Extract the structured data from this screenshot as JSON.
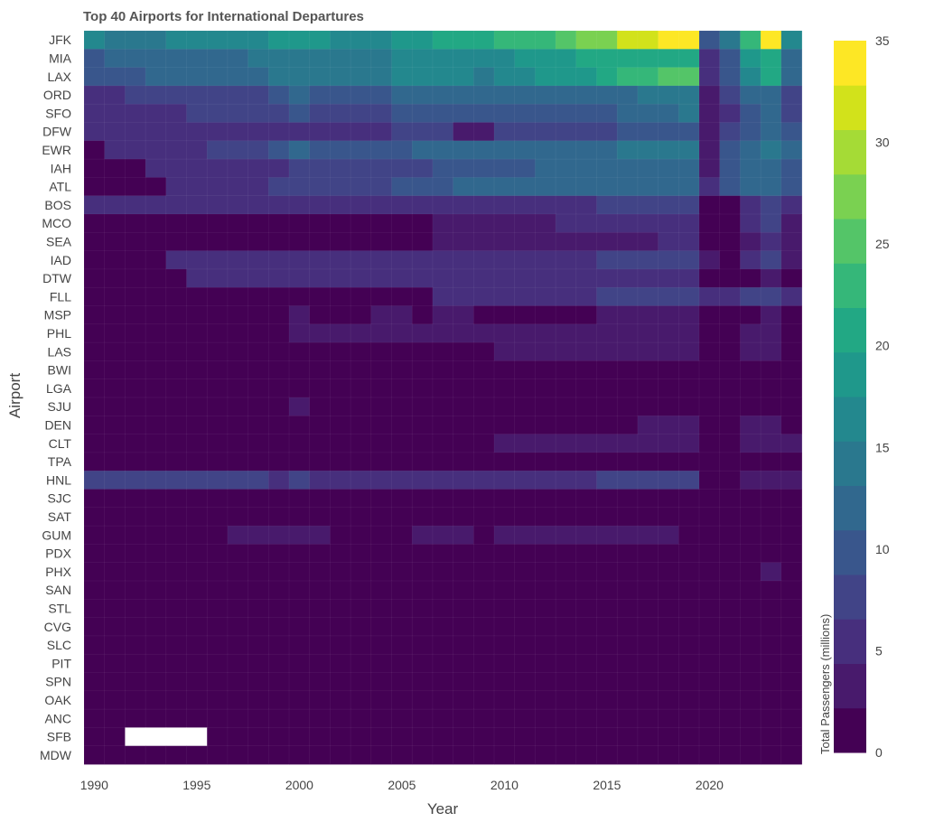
{
  "chart_data": {
    "type": "heatmap",
    "title": "Top 40 Airports for International Departures",
    "xlabel": "Year",
    "ylabel": "Airport",
    "colorbar_title": "Total Passengers (millions)",
    "colorscale": "viridis",
    "zlim": [
      0,
      35
    ],
    "colorbar_ticks": [
      0,
      5,
      10,
      15,
      20,
      25,
      30,
      35
    ],
    "x_ticks": [
      1990,
      1995,
      2000,
      2005,
      2010,
      2015,
      2020
    ],
    "x": [
      1990,
      1991,
      1992,
      1993,
      1994,
      1995,
      1996,
      1997,
      1998,
      1999,
      2000,
      2001,
      2002,
      2003,
      2004,
      2005,
      2006,
      2007,
      2008,
      2009,
      2010,
      2011,
      2012,
      2013,
      2014,
      2015,
      2016,
      2017,
      2018,
      2019,
      2020,
      2021,
      2022,
      2023,
      2024
    ],
    "y": [
      "JFK",
      "MIA",
      "LAX",
      "ORD",
      "SFO",
      "DFW",
      "EWR",
      "IAH",
      "ATL",
      "BOS",
      "MCO",
      "SEA",
      "IAD",
      "DTW",
      "FLL",
      "MSP",
      "PHL",
      "LAS",
      "BWI",
      "LGA",
      "SJU",
      "DEN",
      "CLT",
      "TPA",
      "HNL",
      "SJC",
      "SAT",
      "GUM",
      "PDX",
      "PHX",
      "SAN",
      "STL",
      "CVG",
      "SLC",
      "PIT",
      "SPN",
      "OAK",
      "ANC",
      "SFB",
      "MDW"
    ],
    "z": [
      [
        16,
        15,
        15,
        15,
        16,
        16,
        16,
        16,
        17,
        18,
        19,
        19,
        17,
        16,
        17,
        18,
        19,
        20,
        21,
        21,
        23,
        23,
        23,
        26,
        28,
        28,
        31,
        31,
        34,
        34,
        9,
        14,
        24,
        34,
        16
      ],
      [
        10,
        11,
        11,
        11,
        12,
        12,
        13,
        13,
        14,
        14,
        15,
        15,
        14,
        14,
        15,
        16,
        16,
        16,
        16,
        16,
        17,
        18,
        19,
        19,
        20,
        20,
        21,
        21,
        21,
        21,
        6,
        10,
        19,
        21,
        13
      ],
      [
        10,
        10,
        10,
        11,
        11,
        12,
        12,
        13,
        13,
        14,
        15,
        15,
        14,
        14,
        14,
        16,
        16,
        16,
        16,
        15,
        16,
        17,
        18,
        19,
        19,
        20,
        23,
        23,
        25,
        25,
        6,
        10,
        17,
        20,
        12
      ],
      [
        6,
        6,
        7,
        7,
        7,
        7,
        7,
        8,
        8,
        9,
        11,
        9,
        9,
        9,
        10,
        11,
        11,
        11,
        11,
        11,
        11,
        11,
        11,
        11,
        12,
        12,
        13,
        14,
        14,
        14,
        4,
        8,
        11,
        13,
        8
      ],
      [
        6,
        6,
        6,
        6,
        6,
        7,
        7,
        7,
        7,
        7,
        9,
        8,
        8,
        8,
        8,
        9,
        9,
        9,
        9,
        9,
        9,
        9,
        9,
        10,
        10,
        10,
        12,
        13,
        13,
        15,
        3,
        5,
        10,
        11,
        8
      ],
      [
        5,
        5,
        5,
        5,
        5,
        5,
        5,
        5,
        5,
        5,
        6,
        6,
        6,
        6,
        6,
        7,
        7,
        7,
        4,
        4,
        7,
        7,
        8,
        8,
        8,
        8,
        9,
        10,
        10,
        10,
        4,
        7,
        9,
        11,
        9
      ],
      [
        1,
        6,
        6,
        6,
        6,
        6,
        7,
        7,
        8,
        9,
        11,
        10,
        9,
        10,
        10,
        10,
        11,
        12,
        12,
        12,
        12,
        12,
        12,
        12,
        13,
        13,
        14,
        15,
        15,
        15,
        4,
        9,
        13,
        15,
        11
      ],
      [
        2,
        2,
        2,
        6,
        6,
        6,
        6,
        6,
        6,
        6,
        8,
        8,
        8,
        8,
        8,
        8,
        8,
        9,
        10,
        10,
        10,
        10,
        11,
        11,
        11,
        12,
        12,
        13,
        13,
        13,
        4,
        9,
        12,
        13,
        9
      ],
      [
        2,
        2,
        2,
        2,
        6,
        6,
        6,
        6,
        6,
        7,
        8,
        8,
        8,
        8,
        8,
        10,
        10,
        10,
        11,
        11,
        11,
        12,
        12,
        12,
        13,
        13,
        13,
        13,
        13,
        13,
        5,
        9,
        11,
        13,
        9
      ],
      [
        5,
        5,
        5,
        5,
        5,
        5,
        5,
        5,
        5,
        5,
        5,
        5,
        5,
        5,
        5,
        5,
        5,
        5,
        5,
        5,
        5,
        5,
        5,
        5,
        5,
        7,
        7,
        7,
        7,
        8,
        1,
        1,
        6,
        7,
        5
      ],
      [
        2,
        2,
        2,
        2,
        2,
        2,
        2,
        2,
        2,
        2,
        2,
        2,
        2,
        2,
        2,
        2,
        2,
        3,
        4,
        4,
        4,
        4,
        4,
        5,
        5,
        6,
        6,
        6,
        6,
        6,
        2,
        2,
        6,
        7,
        4
      ],
      [
        2,
        2,
        2,
        2,
        2,
        2,
        2,
        2,
        2,
        2,
        2,
        2,
        2,
        2,
        2,
        2,
        2,
        3,
        3,
        3,
        3,
        3,
        3,
        3,
        3,
        4,
        4,
        4,
        5,
        5,
        2,
        2,
        4,
        6,
        4
      ],
      [
        2,
        2,
        2,
        2,
        5,
        5,
        5,
        5,
        5,
        5,
        5,
        5,
        5,
        5,
        5,
        5,
        6,
        6,
        6,
        6,
        6,
        6,
        6,
        6,
        6,
        7,
        7,
        8,
        8,
        8,
        3,
        2,
        5,
        7,
        4
      ],
      [
        2,
        2,
        2,
        2,
        2,
        5,
        5,
        5,
        5,
        5,
        5,
        5,
        5,
        5,
        5,
        5,
        5,
        5,
        5,
        5,
        5,
        5,
        5,
        5,
        5,
        5,
        5,
        5,
        5,
        5,
        2,
        2,
        2,
        4,
        1
      ],
      [
        2,
        2,
        2,
        2,
        2,
        2,
        2,
        2,
        2,
        2,
        2,
        2,
        2,
        2,
        2,
        2,
        2,
        5,
        5,
        5,
        5,
        5,
        5,
        5,
        5,
        7,
        7,
        7,
        8,
        8,
        5,
        5,
        7,
        7,
        5
      ],
      [
        2,
        2,
        2,
        2,
        2,
        2,
        2,
        2,
        2,
        2,
        4,
        2,
        2,
        2,
        4,
        4,
        2,
        4,
        4,
        2,
        2,
        2,
        2,
        2,
        2,
        4,
        4,
        4,
        4,
        4,
        2,
        2,
        2,
        4,
        2
      ],
      [
        2,
        2,
        2,
        2,
        2,
        2,
        2,
        2,
        2,
        2,
        4,
        4,
        4,
        4,
        4,
        4,
        4,
        4,
        4,
        4,
        4,
        4,
        4,
        4,
        4,
        4,
        4,
        4,
        4,
        4,
        2,
        2,
        4,
        4,
        2
      ],
      [
        2,
        2,
        2,
        2,
        2,
        2,
        2,
        2,
        2,
        2,
        2,
        2,
        2,
        2,
        2,
        2,
        2,
        2,
        2,
        2,
        4,
        4,
        4,
        4,
        4,
        4,
        4,
        4,
        4,
        4,
        2,
        2,
        4,
        4,
        2
      ],
      [
        2,
        2,
        2,
        2,
        2,
        2,
        2,
        2,
        2,
        2,
        2,
        2,
        2,
        2,
        2,
        2,
        2,
        2,
        2,
        2,
        2,
        2,
        2,
        2,
        2,
        2,
        2,
        2,
        2,
        2,
        2,
        2,
        2,
        2,
        2
      ],
      [
        2,
        2,
        2,
        2,
        2,
        2,
        2,
        2,
        2,
        2,
        2,
        2,
        2,
        2,
        2,
        2,
        2,
        2,
        2,
        2,
        2,
        2,
        2,
        2,
        2,
        2,
        2,
        2,
        2,
        2,
        2,
        2,
        2,
        2,
        2
      ],
      [
        2,
        2,
        2,
        2,
        2,
        2,
        2,
        2,
        2,
        2,
        4,
        2,
        2,
        2,
        2,
        2,
        2,
        2,
        2,
        2,
        2,
        2,
        2,
        2,
        2,
        2,
        2,
        2,
        2,
        2,
        2,
        2,
        2,
        2,
        2
      ],
      [
        2,
        2,
        2,
        2,
        2,
        2,
        2,
        2,
        2,
        2,
        2,
        2,
        2,
        2,
        2,
        2,
        2,
        2,
        2,
        2,
        2,
        2,
        2,
        2,
        2,
        2,
        2,
        4,
        4,
        4,
        2,
        2,
        4,
        4,
        2
      ],
      [
        2,
        2,
        2,
        2,
        2,
        2,
        2,
        2,
        2,
        2,
        2,
        2,
        2,
        2,
        2,
        2,
        2,
        2,
        2,
        2,
        4,
        4,
        4,
        4,
        4,
        4,
        4,
        4,
        4,
        4,
        2,
        2,
        4,
        4,
        4
      ],
      [
        2,
        2,
        2,
        2,
        2,
        2,
        2,
        2,
        2,
        2,
        2,
        2,
        2,
        2,
        2,
        2,
        2,
        2,
        2,
        2,
        2,
        2,
        2,
        2,
        2,
        2,
        2,
        2,
        2,
        2,
        2,
        2,
        2,
        2,
        2
      ],
      [
        7,
        7,
        7,
        7,
        7,
        7,
        7,
        7,
        7,
        6,
        8,
        6,
        6,
        6,
        6,
        6,
        6,
        6,
        6,
        6,
        6,
        6,
        6,
        6,
        6,
        7,
        7,
        7,
        7,
        7,
        2,
        2,
        3,
        4,
        3
      ],
      [
        2,
        2,
        2,
        2,
        2,
        2,
        2,
        2,
        2,
        2,
        2,
        2,
        2,
        2,
        2,
        2,
        2,
        2,
        2,
        2,
        2,
        2,
        2,
        2,
        2,
        2,
        2,
        2,
        2,
        2,
        2,
        2,
        2,
        2,
        2
      ],
      [
        2,
        2,
        2,
        2,
        2,
        2,
        2,
        2,
        2,
        2,
        2,
        2,
        2,
        2,
        2,
        2,
        2,
        2,
        2,
        2,
        2,
        2,
        2,
        2,
        2,
        2,
        2,
        2,
        2,
        2,
        2,
        2,
        2,
        2,
        2
      ],
      [
        2,
        2,
        2,
        2,
        2,
        2,
        2,
        4,
        4,
        4,
        4,
        4,
        2,
        2,
        2,
        2,
        4,
        4,
        4,
        2,
        4,
        4,
        4,
        4,
        4,
        4,
        4,
        4,
        4,
        2,
        2,
        2,
        2,
        2,
        2
      ],
      [
        2,
        2,
        2,
        2,
        2,
        2,
        2,
        2,
        2,
        2,
        2,
        2,
        2,
        2,
        2,
        2,
        2,
        2,
        2,
        2,
        2,
        2,
        2,
        2,
        2,
        2,
        2,
        2,
        2,
        2,
        2,
        2,
        2,
        2,
        2
      ],
      [
        2,
        2,
        2,
        2,
        2,
        2,
        2,
        2,
        2,
        2,
        2,
        2,
        2,
        2,
        2,
        2,
        2,
        2,
        2,
        2,
        2,
        2,
        2,
        2,
        2,
        2,
        2,
        2,
        2,
        2,
        2,
        2,
        2,
        4,
        2
      ],
      [
        2,
        2,
        2,
        2,
        2,
        2,
        2,
        2,
        2,
        2,
        2,
        2,
        2,
        2,
        2,
        2,
        2,
        2,
        2,
        2,
        2,
        2,
        2,
        2,
        2,
        2,
        2,
        2,
        2,
        2,
        2,
        2,
        2,
        2,
        2
      ],
      [
        2,
        2,
        2,
        2,
        2,
        2,
        2,
        2,
        2,
        2,
        2,
        2,
        2,
        2,
        2,
        2,
        2,
        2,
        2,
        2,
        2,
        2,
        2,
        2,
        2,
        2,
        2,
        2,
        2,
        2,
        2,
        2,
        2,
        2,
        2
      ],
      [
        2,
        2,
        2,
        2,
        2,
        2,
        2,
        2,
        2,
        2,
        2,
        2,
        2,
        2,
        2,
        2,
        2,
        2,
        2,
        2,
        2,
        2,
        2,
        2,
        2,
        2,
        2,
        2,
        2,
        2,
        2,
        2,
        2,
        2,
        2
      ],
      [
        2,
        2,
        2,
        2,
        2,
        2,
        2,
        2,
        2,
        2,
        2,
        2,
        2,
        2,
        2,
        2,
        2,
        2,
        2,
        2,
        2,
        2,
        2,
        2,
        2,
        2,
        2,
        2,
        2,
        2,
        2,
        2,
        2,
        2,
        2
      ],
      [
        2,
        2,
        2,
        2,
        2,
        2,
        2,
        2,
        2,
        2,
        2,
        2,
        2,
        2,
        2,
        2,
        2,
        2,
        2,
        2,
        2,
        2,
        2,
        2,
        2,
        2,
        2,
        2,
        2,
        2,
        2,
        2,
        2,
        2,
        2
      ],
      [
        2,
        2,
        2,
        2,
        2,
        2,
        2,
        2,
        2,
        2,
        2,
        2,
        2,
        2,
        2,
        2,
        2,
        2,
        2,
        2,
        2,
        2,
        2,
        2,
        2,
        2,
        2,
        2,
        2,
        2,
        2,
        2,
        2,
        2,
        2
      ],
      [
        2,
        2,
        2,
        2,
        2,
        2,
        2,
        2,
        2,
        2,
        2,
        2,
        2,
        2,
        2,
        2,
        2,
        2,
        2,
        2,
        2,
        2,
        2,
        2,
        2,
        2,
        2,
        2,
        2,
        2,
        2,
        2,
        2,
        2,
        2
      ],
      [
        2,
        2,
        2,
        2,
        2,
        2,
        2,
        2,
        2,
        2,
        2,
        2,
        2,
        2,
        2,
        2,
        2,
        2,
        2,
        2,
        2,
        2,
        2,
        2,
        2,
        2,
        2,
        2,
        2,
        2,
        2,
        2,
        2,
        2,
        2
      ],
      [
        2,
        2,
        null,
        null,
        null,
        null,
        2,
        2,
        2,
        2,
        2,
        2,
        2,
        2,
        2,
        2,
        2,
        2,
        2,
        2,
        2,
        2,
        2,
        2,
        2,
        2,
        2,
        2,
        2,
        2,
        2,
        2,
        2,
        2,
        2
      ],
      [
        2,
        2,
        2,
        2,
        2,
        2,
        2,
        2,
        2,
        2,
        2,
        2,
        2,
        2,
        2,
        2,
        2,
        2,
        2,
        2,
        2,
        2,
        2,
        2,
        2,
        2,
        2,
        2,
        2,
        2,
        2,
        2,
        2,
        2,
        2
      ]
    ],
    "color_stops": [
      "#440154",
      "#481a6c",
      "#472f7d",
      "#414487",
      "#39568c",
      "#31688e",
      "#2a788e",
      "#23888e",
      "#1f988b",
      "#22a884",
      "#35b779",
      "#54c568",
      "#7ad151",
      "#a5db36",
      "#d2e21b",
      "#fde725"
    ]
  }
}
